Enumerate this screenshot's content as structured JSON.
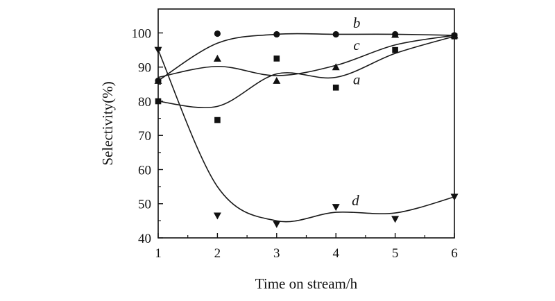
{
  "chart_data": {
    "type": "scatter",
    "xlabel": "Time on stream/h",
    "ylabel": "Selectivity(%)",
    "xlim": [
      1,
      6
    ],
    "ylim": [
      40,
      107
    ],
    "x_ticks": [
      1,
      2,
      3,
      4,
      5,
      6
    ],
    "y_ticks": [
      40,
      50,
      60,
      70,
      80,
      90,
      100
    ],
    "grid": false,
    "series": [
      {
        "name": "a",
        "marker": "square",
        "x": [
          1,
          2,
          3,
          4,
          5,
          6
        ],
        "y": [
          80,
          74.5,
          92.5,
          84,
          95,
          99
        ],
        "curve": [
          [
            1,
            80
          ],
          [
            2,
            78.5
          ],
          [
            3,
            88
          ],
          [
            4,
            87
          ],
          [
            5,
            94
          ],
          [
            6,
            99
          ]
        ]
      },
      {
        "name": "b",
        "marker": "circle",
        "x": [
          1,
          2,
          3,
          4,
          5,
          6
        ],
        "y": [
          86,
          99.8,
          99.6,
          99.6,
          99.6,
          99.3
        ],
        "curve": [
          [
            1,
            86
          ],
          [
            2,
            97
          ],
          [
            3,
            99.6
          ],
          [
            4,
            99.6
          ],
          [
            5,
            99.6
          ],
          [
            6,
            99.3
          ]
        ]
      },
      {
        "name": "c",
        "marker": "triangle-up",
        "x": [
          1,
          2,
          3,
          4,
          5,
          6
        ],
        "y": [
          86,
          92.5,
          86,
          90,
          99.5,
          99.3
        ],
        "curve": [
          [
            1,
            87
          ],
          [
            2,
            90.2
          ],
          [
            3,
            87.5
          ],
          [
            4,
            90.5
          ],
          [
            5,
            96.5
          ],
          [
            6,
            99.3
          ]
        ]
      },
      {
        "name": "d",
        "marker": "triangle-down",
        "x": [
          1,
          2,
          3,
          4,
          5,
          6
        ],
        "y": [
          95,
          46.5,
          44,
          49,
          45.5,
          52
        ],
        "curve": [
          [
            1,
            95
          ],
          [
            2,
            55
          ],
          [
            3,
            45
          ],
          [
            4,
            47.5
          ],
          [
            5,
            47.3
          ],
          [
            6,
            52
          ]
        ]
      }
    ]
  }
}
